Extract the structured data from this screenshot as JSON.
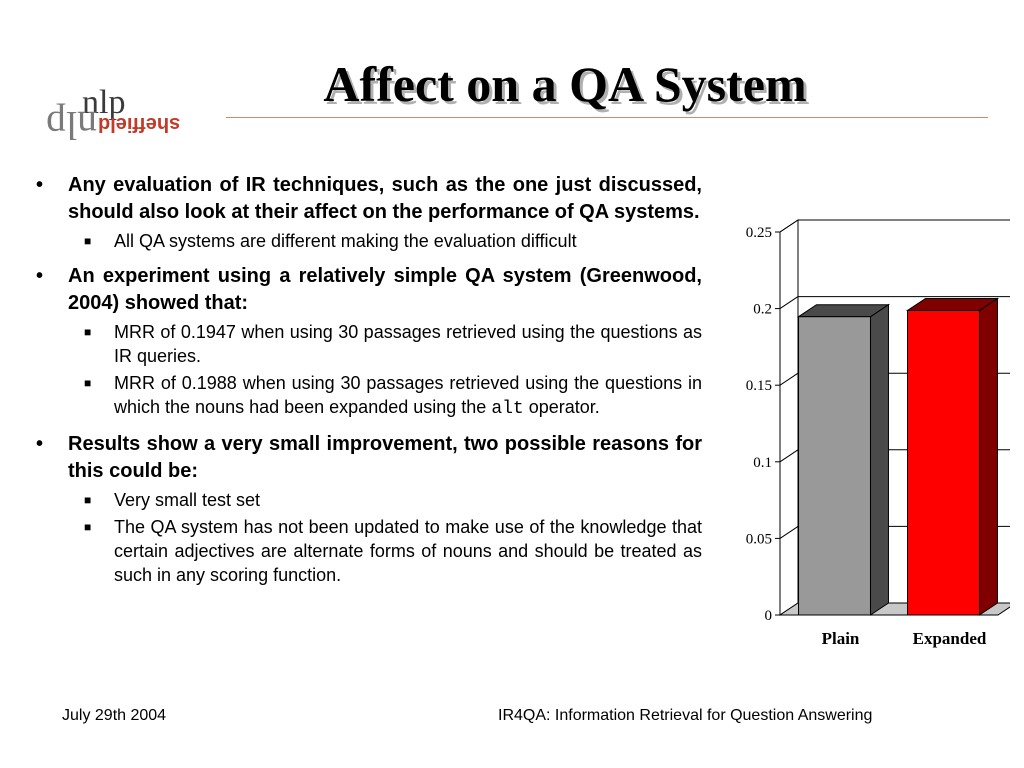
{
  "logo": {
    "top_text": "nlp",
    "flipped_text": "nlp",
    "sheffield": "sheffield"
  },
  "title": "Affect on a QA System",
  "bullets": [
    {
      "text": "Any evaluation of IR techniques, such as the one just discussed, should also look at their affect on the performance of QA systems.",
      "subs": [
        "All QA systems are different making the evaluation difficult"
      ]
    },
    {
      "text": "An experiment using a relatively simple QA system (Greenwood, 2004) showed that:",
      "subs": [
        "MRR of 0.1947 when using 30 passages retrieved using the questions as IR queries.",
        "MRR of 0.1988 when using 30 passages retrieved using the questions in which the nouns had been expanded using the",
        "alt",
        "operator."
      ]
    },
    {
      "text": "Results show a very small improvement, two possible reasons for this could be:",
      "subs": [
        "Very small test set",
        "The QA system has not been updated to make use of the knowledge that certain adjectives are alternate forms of nouns and should be treated as such in any scoring function."
      ]
    }
  ],
  "bullet_symbol": "•",
  "sub_bullet_symbol": "■",
  "chart_data": {
    "type": "bar",
    "categories": [
      "Plain",
      "Expanded"
    ],
    "values": [
      0.1947,
      0.1988
    ],
    "colors": [
      "#999999",
      "#ff0000"
    ],
    "side_colors": [
      "#4a4a4a",
      "#800000"
    ],
    "yticks": [
      "0",
      "0.05",
      "0.1",
      "0.15",
      "0.2",
      "0.25"
    ],
    "ylim": [
      0,
      0.25
    ],
    "grid": true,
    "three_d": true
  },
  "footer": {
    "date": "July 29th 2004",
    "title": "IR4QA: Information Retrieval for Question Answering"
  }
}
